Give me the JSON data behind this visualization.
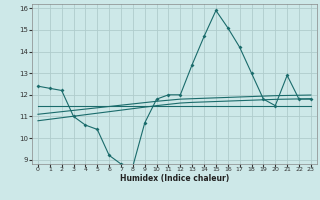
{
  "xlabel": "Humidex (Indice chaleur)",
  "bg_color": "#cde8e8",
  "grid_color": "#b0cccc",
  "line_color": "#1a6b6b",
  "xlim": [
    -0.5,
    23.5
  ],
  "ylim": [
    8.8,
    16.2
  ],
  "xticks": [
    0,
    1,
    2,
    3,
    4,
    5,
    6,
    7,
    8,
    9,
    10,
    11,
    12,
    13,
    14,
    15,
    16,
    17,
    18,
    19,
    20,
    21,
    22,
    23
  ],
  "yticks": [
    9,
    10,
    11,
    12,
    13,
    14,
    15,
    16
  ],
  "series1_x": [
    0,
    1,
    2,
    3,
    4,
    5,
    6,
    7,
    8,
    9,
    10,
    11,
    12,
    13,
    14,
    15,
    16,
    17,
    18,
    19,
    20,
    21,
    22,
    23
  ],
  "series1_y": [
    12.4,
    12.3,
    12.2,
    11.0,
    10.6,
    10.4,
    9.2,
    8.8,
    8.7,
    10.7,
    11.8,
    12.0,
    12.0,
    13.4,
    14.7,
    15.9,
    15.1,
    14.2,
    13.0,
    11.8,
    11.5,
    12.9,
    11.8,
    11.8
  ],
  "series2_x": [
    0,
    1,
    2,
    3,
    4,
    5,
    6,
    7,
    8,
    9,
    10,
    11,
    12,
    13,
    14,
    15,
    16,
    17,
    18,
    19,
    20,
    21,
    22,
    23
  ],
  "series2_y": [
    11.5,
    11.5,
    11.5,
    11.5,
    11.5,
    11.5,
    11.5,
    11.5,
    11.5,
    11.5,
    11.5,
    11.5,
    11.5,
    11.5,
    11.5,
    11.5,
    11.5,
    11.5,
    11.5,
    11.5,
    11.5,
    11.5,
    11.5,
    11.5
  ],
  "series3_x": [
    0,
    1,
    2,
    3,
    4,
    5,
    6,
    7,
    8,
    9,
    10,
    11,
    12,
    13,
    14,
    15,
    16,
    17,
    18,
    19,
    20,
    21,
    22,
    23
  ],
  "series3_y": [
    11.1,
    11.16,
    11.22,
    11.28,
    11.34,
    11.4,
    11.46,
    11.52,
    11.58,
    11.64,
    11.7,
    11.75,
    11.8,
    11.82,
    11.84,
    11.86,
    11.88,
    11.9,
    11.92,
    11.94,
    11.96,
    11.97,
    11.98,
    11.99
  ],
  "series4_x": [
    0,
    1,
    2,
    3,
    4,
    5,
    6,
    7,
    8,
    9,
    10,
    11,
    12,
    13,
    14,
    15,
    16,
    17,
    18,
    19,
    20,
    21,
    22,
    23
  ],
  "series4_y": [
    10.8,
    10.87,
    10.94,
    11.01,
    11.08,
    11.15,
    11.22,
    11.29,
    11.36,
    11.43,
    11.5,
    11.56,
    11.62,
    11.65,
    11.67,
    11.69,
    11.71,
    11.73,
    11.75,
    11.77,
    11.79,
    11.8,
    11.81,
    11.82
  ]
}
